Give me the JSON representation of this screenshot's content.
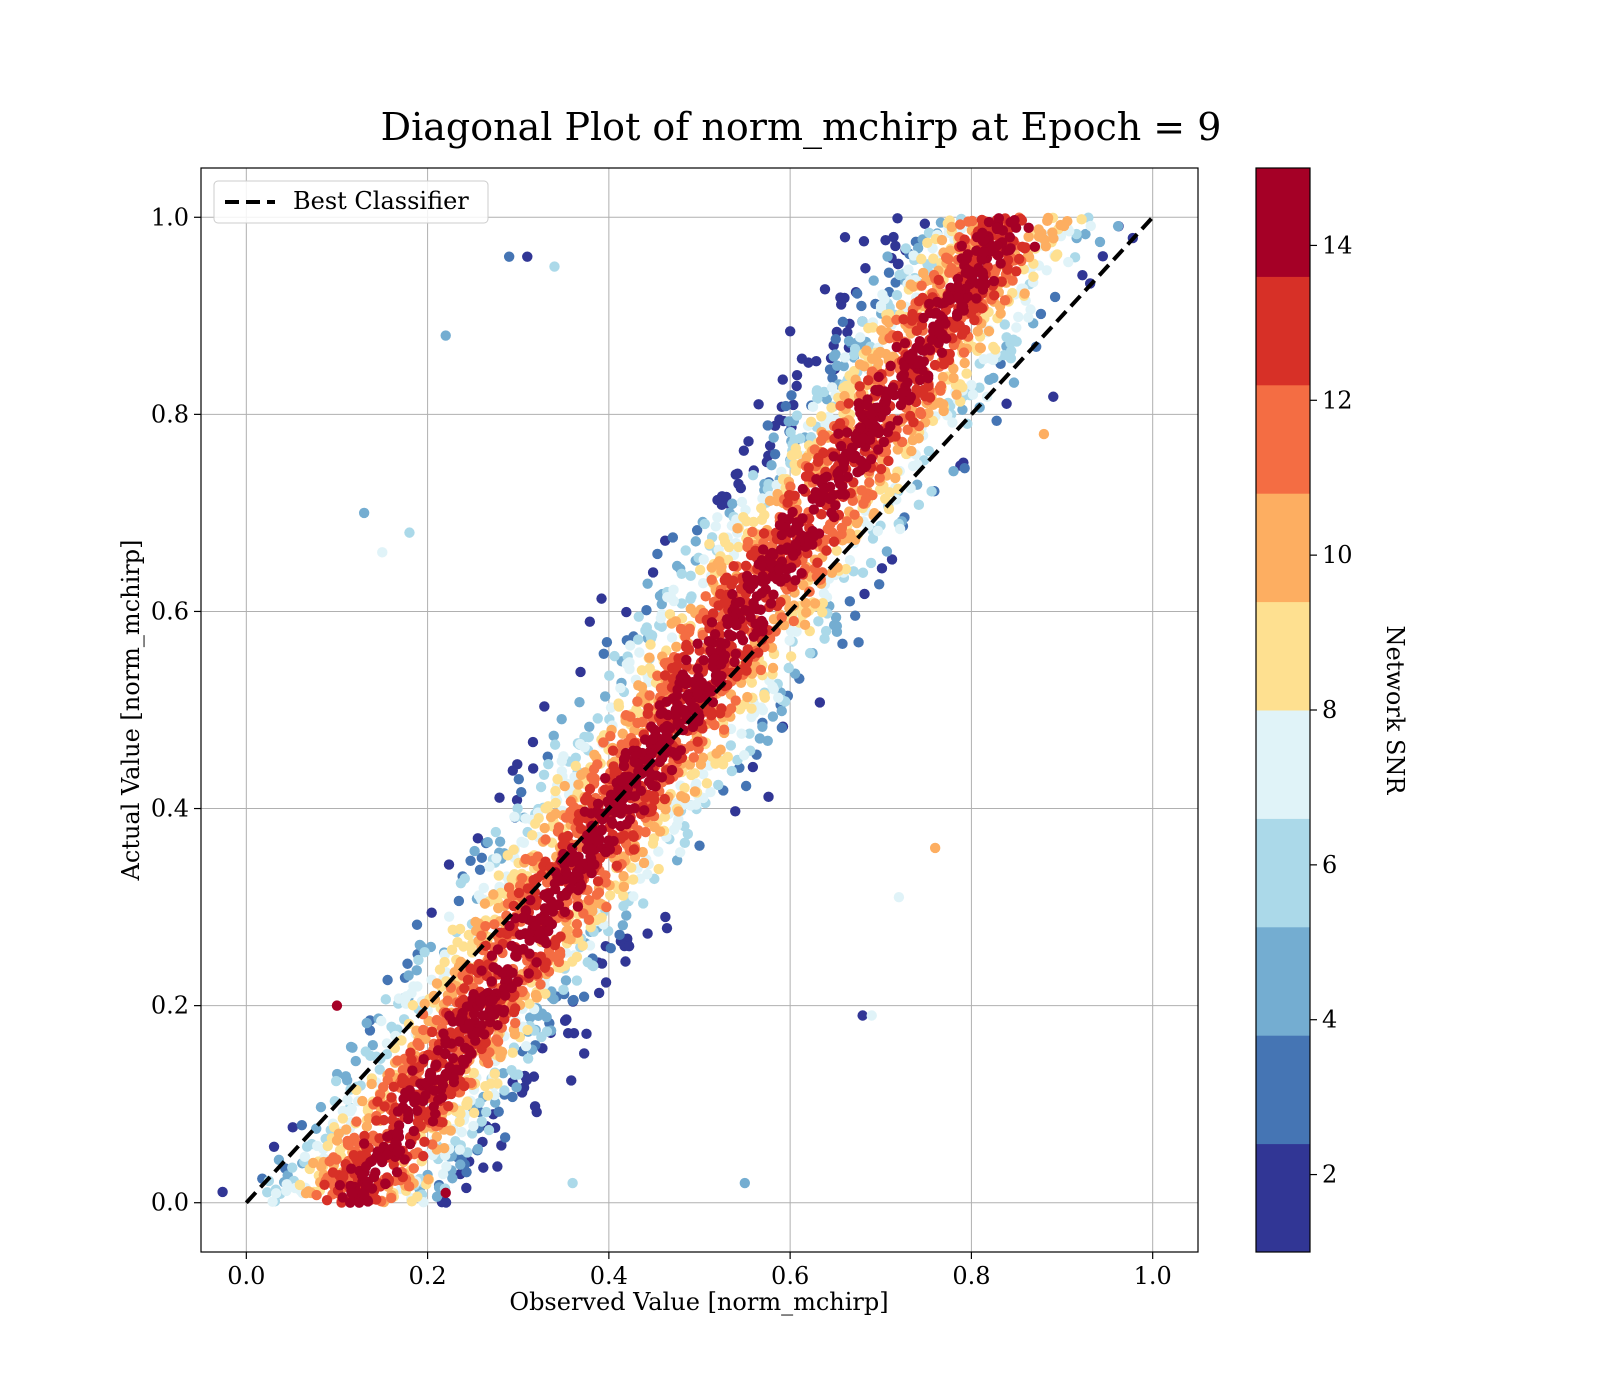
{
  "chart_data": {
    "type": "scatter",
    "title": "Diagonal Plot of norm_mchirp at Epoch = 9",
    "xlabel": "Observed Value [norm_mchirp]",
    "ylabel": "Actual Value [norm_mchirp]",
    "xlim": [
      -0.05,
      1.05
    ],
    "ylim": [
      -0.05,
      1.05
    ],
    "x_ticks": [
      "0.0",
      "0.2",
      "0.4",
      "0.6",
      "0.8",
      "1.0"
    ],
    "y_ticks": [
      "0.0",
      "0.2",
      "0.4",
      "0.6",
      "0.8",
      "1.0"
    ],
    "grid": true,
    "legend": {
      "placement": "top-left",
      "entries": [
        "Best Classifier"
      ]
    },
    "reference_line": {
      "name": "Best Classifier",
      "x": [
        0.0,
        1.0
      ],
      "y": [
        0.0,
        1.0
      ],
      "style": "dashed",
      "color": "#000000"
    },
    "colorbar": {
      "label": "Network SNR",
      "range": [
        1,
        15
      ],
      "ticks": [
        "2",
        "4",
        "6",
        "8",
        "10",
        "12",
        "14"
      ],
      "tick_values": [
        2,
        4,
        6,
        8,
        10,
        12,
        14
      ],
      "colors": [
        "#313695",
        "#4575b4",
        "#74add1",
        "#abd9e9",
        "#e0f3f8",
        "#fee090",
        "#fdae61",
        "#f46d43",
        "#d73027",
        "#a50026"
      ],
      "bins": 10
    },
    "series": [
      {
        "note_points": "dense point cloud centered on the diagonal, high SNR near diagonal, low SNR further away",
        "points": [
          {
            "x": 0.1,
            "y": 0.2,
            "snr": 14
          },
          {
            "x": 0.13,
            "y": 0.7,
            "snr": 5
          },
          {
            "x": 0.15,
            "y": 0.66,
            "snr": 7
          },
          {
            "x": 0.18,
            "y": 0.68,
            "snr": 6
          },
          {
            "x": 0.22,
            "y": 0.88,
            "snr": 5
          },
          {
            "x": 0.29,
            "y": 0.96,
            "snr": 3
          },
          {
            "x": 0.31,
            "y": 0.96,
            "snr": 2
          },
          {
            "x": 0.34,
            "y": 0.95,
            "snr": 6
          },
          {
            "x": 0.68,
            "y": 0.19,
            "snr": 2
          },
          {
            "x": 0.69,
            "y": 0.19,
            "snr": 7
          },
          {
            "x": 0.72,
            "y": 0.31,
            "snr": 7
          },
          {
            "x": 0.76,
            "y": 0.36,
            "snr": 10
          },
          {
            "x": 0.88,
            "y": 0.78,
            "snr": 10
          },
          {
            "x": 0.87,
            "y": 0.97,
            "snr": 14
          },
          {
            "x": 0.36,
            "y": 0.02,
            "snr": 6
          },
          {
            "x": 0.55,
            "y": 0.02,
            "snr": 5
          },
          {
            "x": 0.22,
            "y": 0.01,
            "snr": 14
          },
          {
            "x": 0.13,
            "y": 0.06,
            "snr": 14
          }
        ]
      }
    ]
  }
}
